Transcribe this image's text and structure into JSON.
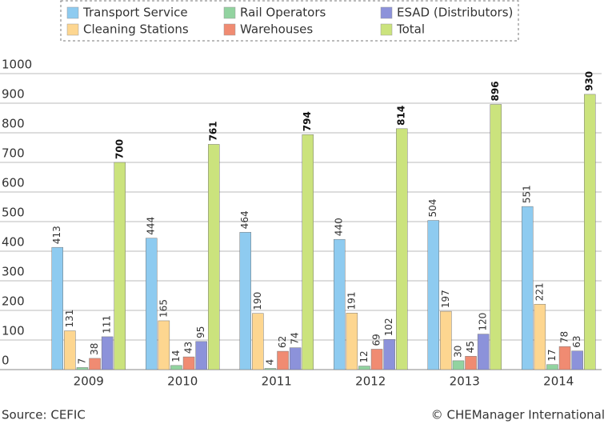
{
  "chart_data": {
    "type": "bar",
    "categories": [
      "2009",
      "2010",
      "2011",
      "2012",
      "2013",
      "2014"
    ],
    "series": [
      {
        "name": "Transport Service",
        "color": "#8ecbf0",
        "values": [
          413,
          444,
          464,
          440,
          504,
          551
        ]
      },
      {
        "name": "Cleaning Stations",
        "color": "#fdd690",
        "values": [
          131,
          165,
          190,
          191,
          197,
          221
        ]
      },
      {
        "name": "Rail Operators",
        "color": "#92d3a0",
        "values": [
          7,
          14,
          4,
          12,
          30,
          17
        ]
      },
      {
        "name": "Warehouses",
        "color": "#f08b72",
        "values": [
          38,
          43,
          62,
          69,
          45,
          78
        ]
      },
      {
        "name": "ESAD (Distributors)",
        "color": "#8c92da",
        "values": [
          111,
          95,
          74,
          102,
          120,
          63
        ]
      },
      {
        "name": "Total",
        "color": "#cbe37d",
        "values": [
          700,
          761,
          794,
          814,
          896,
          930
        ]
      }
    ],
    "ylim": [
      0,
      1000
    ],
    "yticks": [
      0,
      100,
      200,
      300,
      400,
      500,
      600,
      700,
      800,
      900,
      1000
    ],
    "grid": true,
    "legend": "top",
    "source": "Source: CEFIC",
    "credit": "© CHEManager International"
  }
}
